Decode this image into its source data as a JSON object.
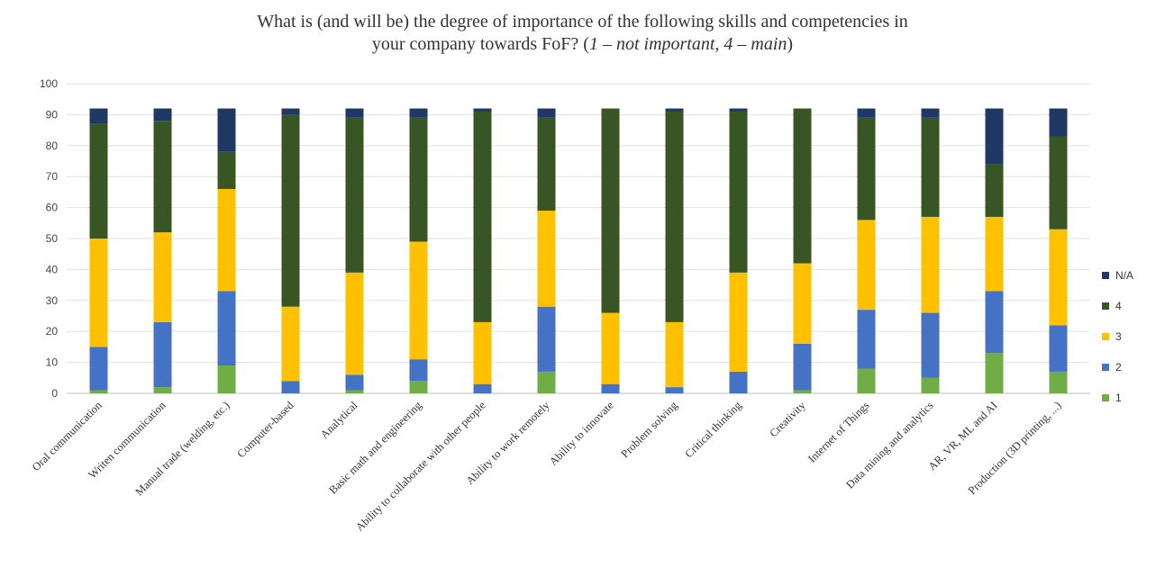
{
  "chart_data": {
    "type": "bar",
    "stacked": true,
    "title": {
      "line1": "What is (and will be) the degree of importance of the following skills and competencies in",
      "line2_prefix": "your company towards FoF? (",
      "line2_italic": "1 – not important, 4 – main",
      "line2_suffix": ")"
    },
    "xlabel": "",
    "ylabel": "",
    "ylim": [
      0,
      100
    ],
    "yticks": [
      "0",
      "10",
      "20",
      "30",
      "40",
      "50",
      "60",
      "70",
      "80",
      "90",
      "100"
    ],
    "grid": true,
    "legend_position": "right",
    "categories": [
      "Oral communication",
      "Writen communication",
      "Manual trade (welding, etc.)",
      "Computer-based",
      "Analytical",
      "Basic math and engineering",
      "Ability to collaborate with other people",
      "Ability to work remotely",
      "Ability to innovate",
      "Problem solving",
      "Critical thinking",
      "Creativity",
      "Internet of Things",
      "Data mining and analytics",
      "AR, VR, ML and AI",
      "Production (3D printing, ...)"
    ],
    "series": [
      {
        "name": "1",
        "color": "#70ad47",
        "values": [
          1,
          2,
          9,
          0,
          1,
          4,
          0,
          7,
          0,
          0,
          0,
          1,
          8,
          5,
          13,
          7
        ]
      },
      {
        "name": "2",
        "color": "#4472c4",
        "values": [
          14,
          21,
          24,
          4,
          5,
          7,
          3,
          21,
          3,
          2,
          7,
          15,
          19,
          21,
          20,
          15
        ]
      },
      {
        "name": "3",
        "color": "#ffc000",
        "values": [
          35,
          29,
          33,
          24,
          33,
          38,
          20,
          31,
          23,
          21,
          32,
          26,
          29,
          31,
          24,
          31
        ]
      },
      {
        "name": "4",
        "color": "#375623",
        "values": [
          37,
          36,
          12,
          62,
          50,
          40,
          68,
          30,
          66,
          68,
          52,
          50,
          33,
          32,
          17,
          30
        ]
      },
      {
        "name": "N/A",
        "color": "#203864",
        "values": [
          5,
          4,
          14,
          2,
          3,
          3,
          1,
          3,
          0,
          1,
          1,
          0,
          3,
          3,
          18,
          9
        ]
      }
    ],
    "legend_order": [
      "N/A",
      "4",
      "3",
      "2",
      "1"
    ]
  }
}
